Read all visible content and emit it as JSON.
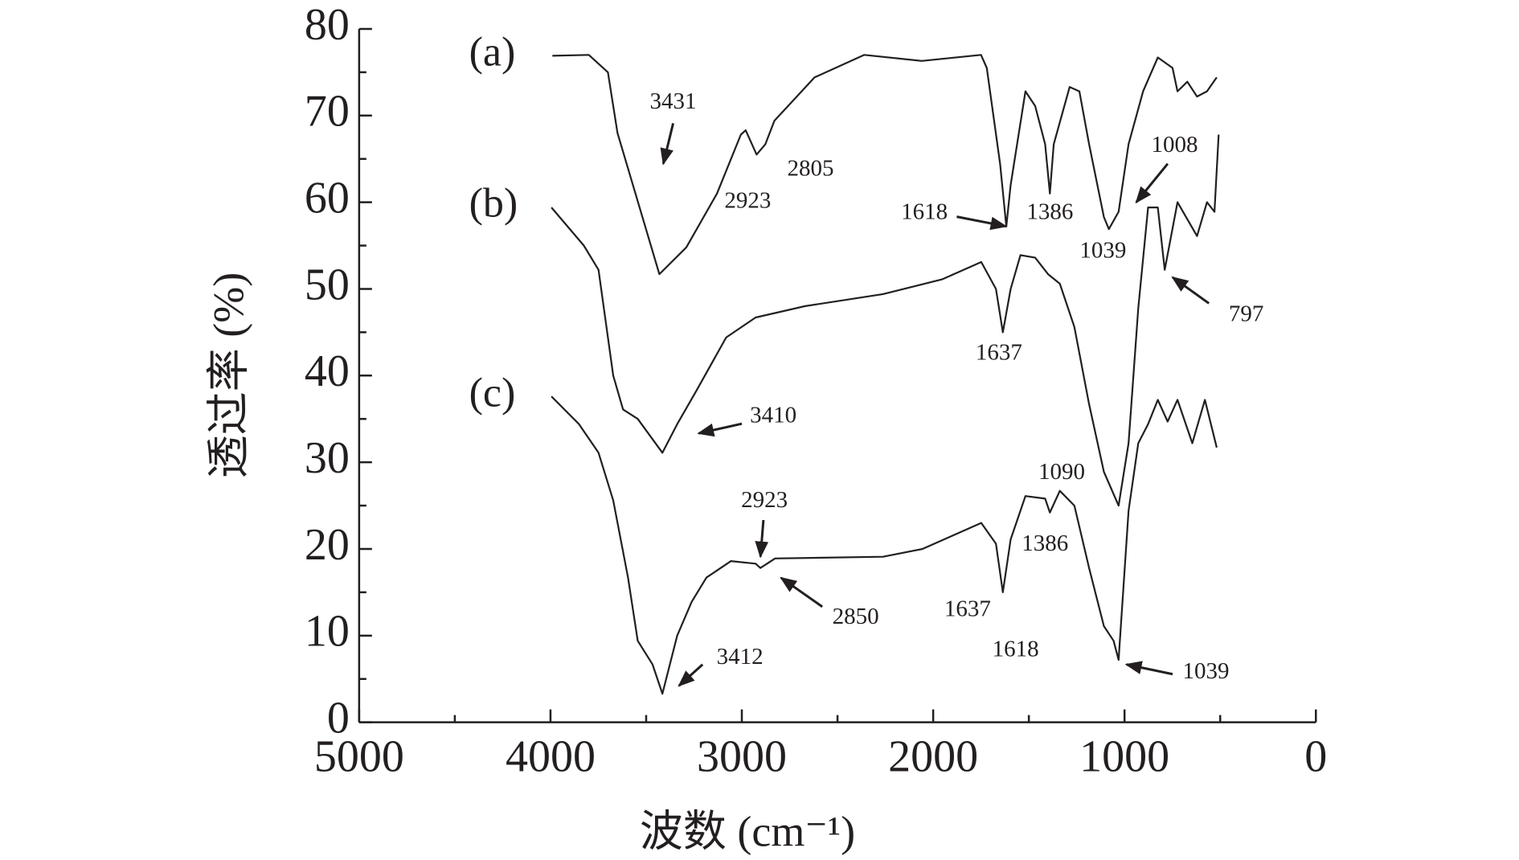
{
  "chart_data": {
    "type": "line",
    "xlabel": "波数 (cm⁻¹)",
    "ylabel": "透过率 (%)",
    "xlim": [
      5000,
      0
    ],
    "xticks": [
      5000,
      4000,
      3000,
      2000,
      1000,
      0
    ],
    "xticks_minor": [
      4500,
      3500,
      2500,
      1500,
      500
    ],
    "ylim": [
      0,
      80
    ],
    "yticks": [
      0,
      10,
      20,
      30,
      40,
      50,
      60,
      70,
      80
    ],
    "yticks_minor": [
      5,
      15,
      25,
      35,
      45,
      55,
      65,
      75
    ],
    "series": [
      {
        "name": "(a)",
        "color": "#231f20",
        "x": [
          3990,
          3800,
          3700,
          3650,
          3431,
          3290,
          3130,
          3005,
          2980,
          2923,
          2877,
          2830,
          2620,
          2360,
          2060,
          1750,
          1720,
          1650,
          1618,
          1595,
          1518,
          1467,
          1415,
          1390,
          1370,
          1287,
          1236,
          1185,
          1108,
          1082,
          1031,
          979,
          903,
          826,
          749,
          723,
          672,
          621,
          569,
          518
        ],
        "values": [
          76.9,
          77,
          75,
          68,
          51.7,
          54.8,
          61,
          67.8,
          68.3,
          65.5,
          66.7,
          69.4,
          74.4,
          77,
          76.3,
          77,
          75.5,
          64.4,
          57.2,
          62,
          72.8,
          71.1,
          66.7,
          61,
          66.7,
          73.3,
          72.8,
          66.7,
          58.3,
          56.9,
          58.9,
          66.7,
          72.8,
          76.7,
          75.5,
          72.8,
          73.9,
          72.2,
          72.8,
          74.4
        ]
      },
      {
        "name": "(b)",
        "color": "#231f20",
        "x": [
          3995,
          3826,
          3749,
          3672,
          3621,
          3544,
          3415,
          3338,
          3236,
          3082,
          2928,
          2672,
          2262,
          1954,
          1749,
          1672,
          1636,
          1595,
          1544,
          1467,
          1400,
          1338,
          1262,
          1185,
          1108,
          1031,
          979,
          928,
          877,
          826,
          790,
          723,
          621,
          569,
          530,
          508
        ],
        "values": [
          59.4,
          55,
          52.2,
          40,
          36.1,
          35,
          31.1,
          34.4,
          38.3,
          44.4,
          46.7,
          48,
          49.4,
          51.1,
          53.1,
          50,
          45,
          50,
          53.9,
          53.6,
          51.7,
          50.6,
          45.6,
          36.7,
          28.9,
          25,
          32.2,
          47.8,
          59.4,
          59.4,
          52.2,
          60,
          56.1,
          60,
          58.9,
          67.8
        ]
      },
      {
        "name": "(c)",
        "color": "#231f20",
        "x": [
          3995,
          3851,
          3749,
          3672,
          3595,
          3544,
          3467,
          3415,
          3338,
          3262,
          3185,
          3057,
          2928,
          2903,
          2826,
          2262,
          2056,
          1749,
          1672,
          1636,
          1595,
          1518,
          1415,
          1390,
          1338,
          1262,
          1185,
          1108,
          1057,
          1031,
          979,
          928,
          877,
          826,
          775,
          723,
          646,
          580,
          518
        ],
        "values": [
          37.6,
          34.4,
          31.1,
          25.6,
          16.7,
          9.4,
          6.7,
          3.3,
          10,
          13.9,
          16.7,
          18.6,
          18.3,
          17.8,
          18.9,
          19.1,
          20,
          23,
          20.6,
          15,
          21.1,
          26.1,
          25.8,
          24.2,
          26.7,
          25,
          17.8,
          11.1,
          9.4,
          7.2,
          24.4,
          32.2,
          34.4,
          37.2,
          34.7,
          37.2,
          32.2,
          37.2,
          31.7
        ]
      }
    ],
    "annotations": [
      "3431",
      "2923",
      "2805",
      "1618",
      "1386",
      "1008",
      "1039",
      "797",
      "1637",
      "3410",
      "2923",
      "1090",
      "1386",
      "2850",
      "1637",
      "1618",
      "3412",
      "1039"
    ]
  }
}
